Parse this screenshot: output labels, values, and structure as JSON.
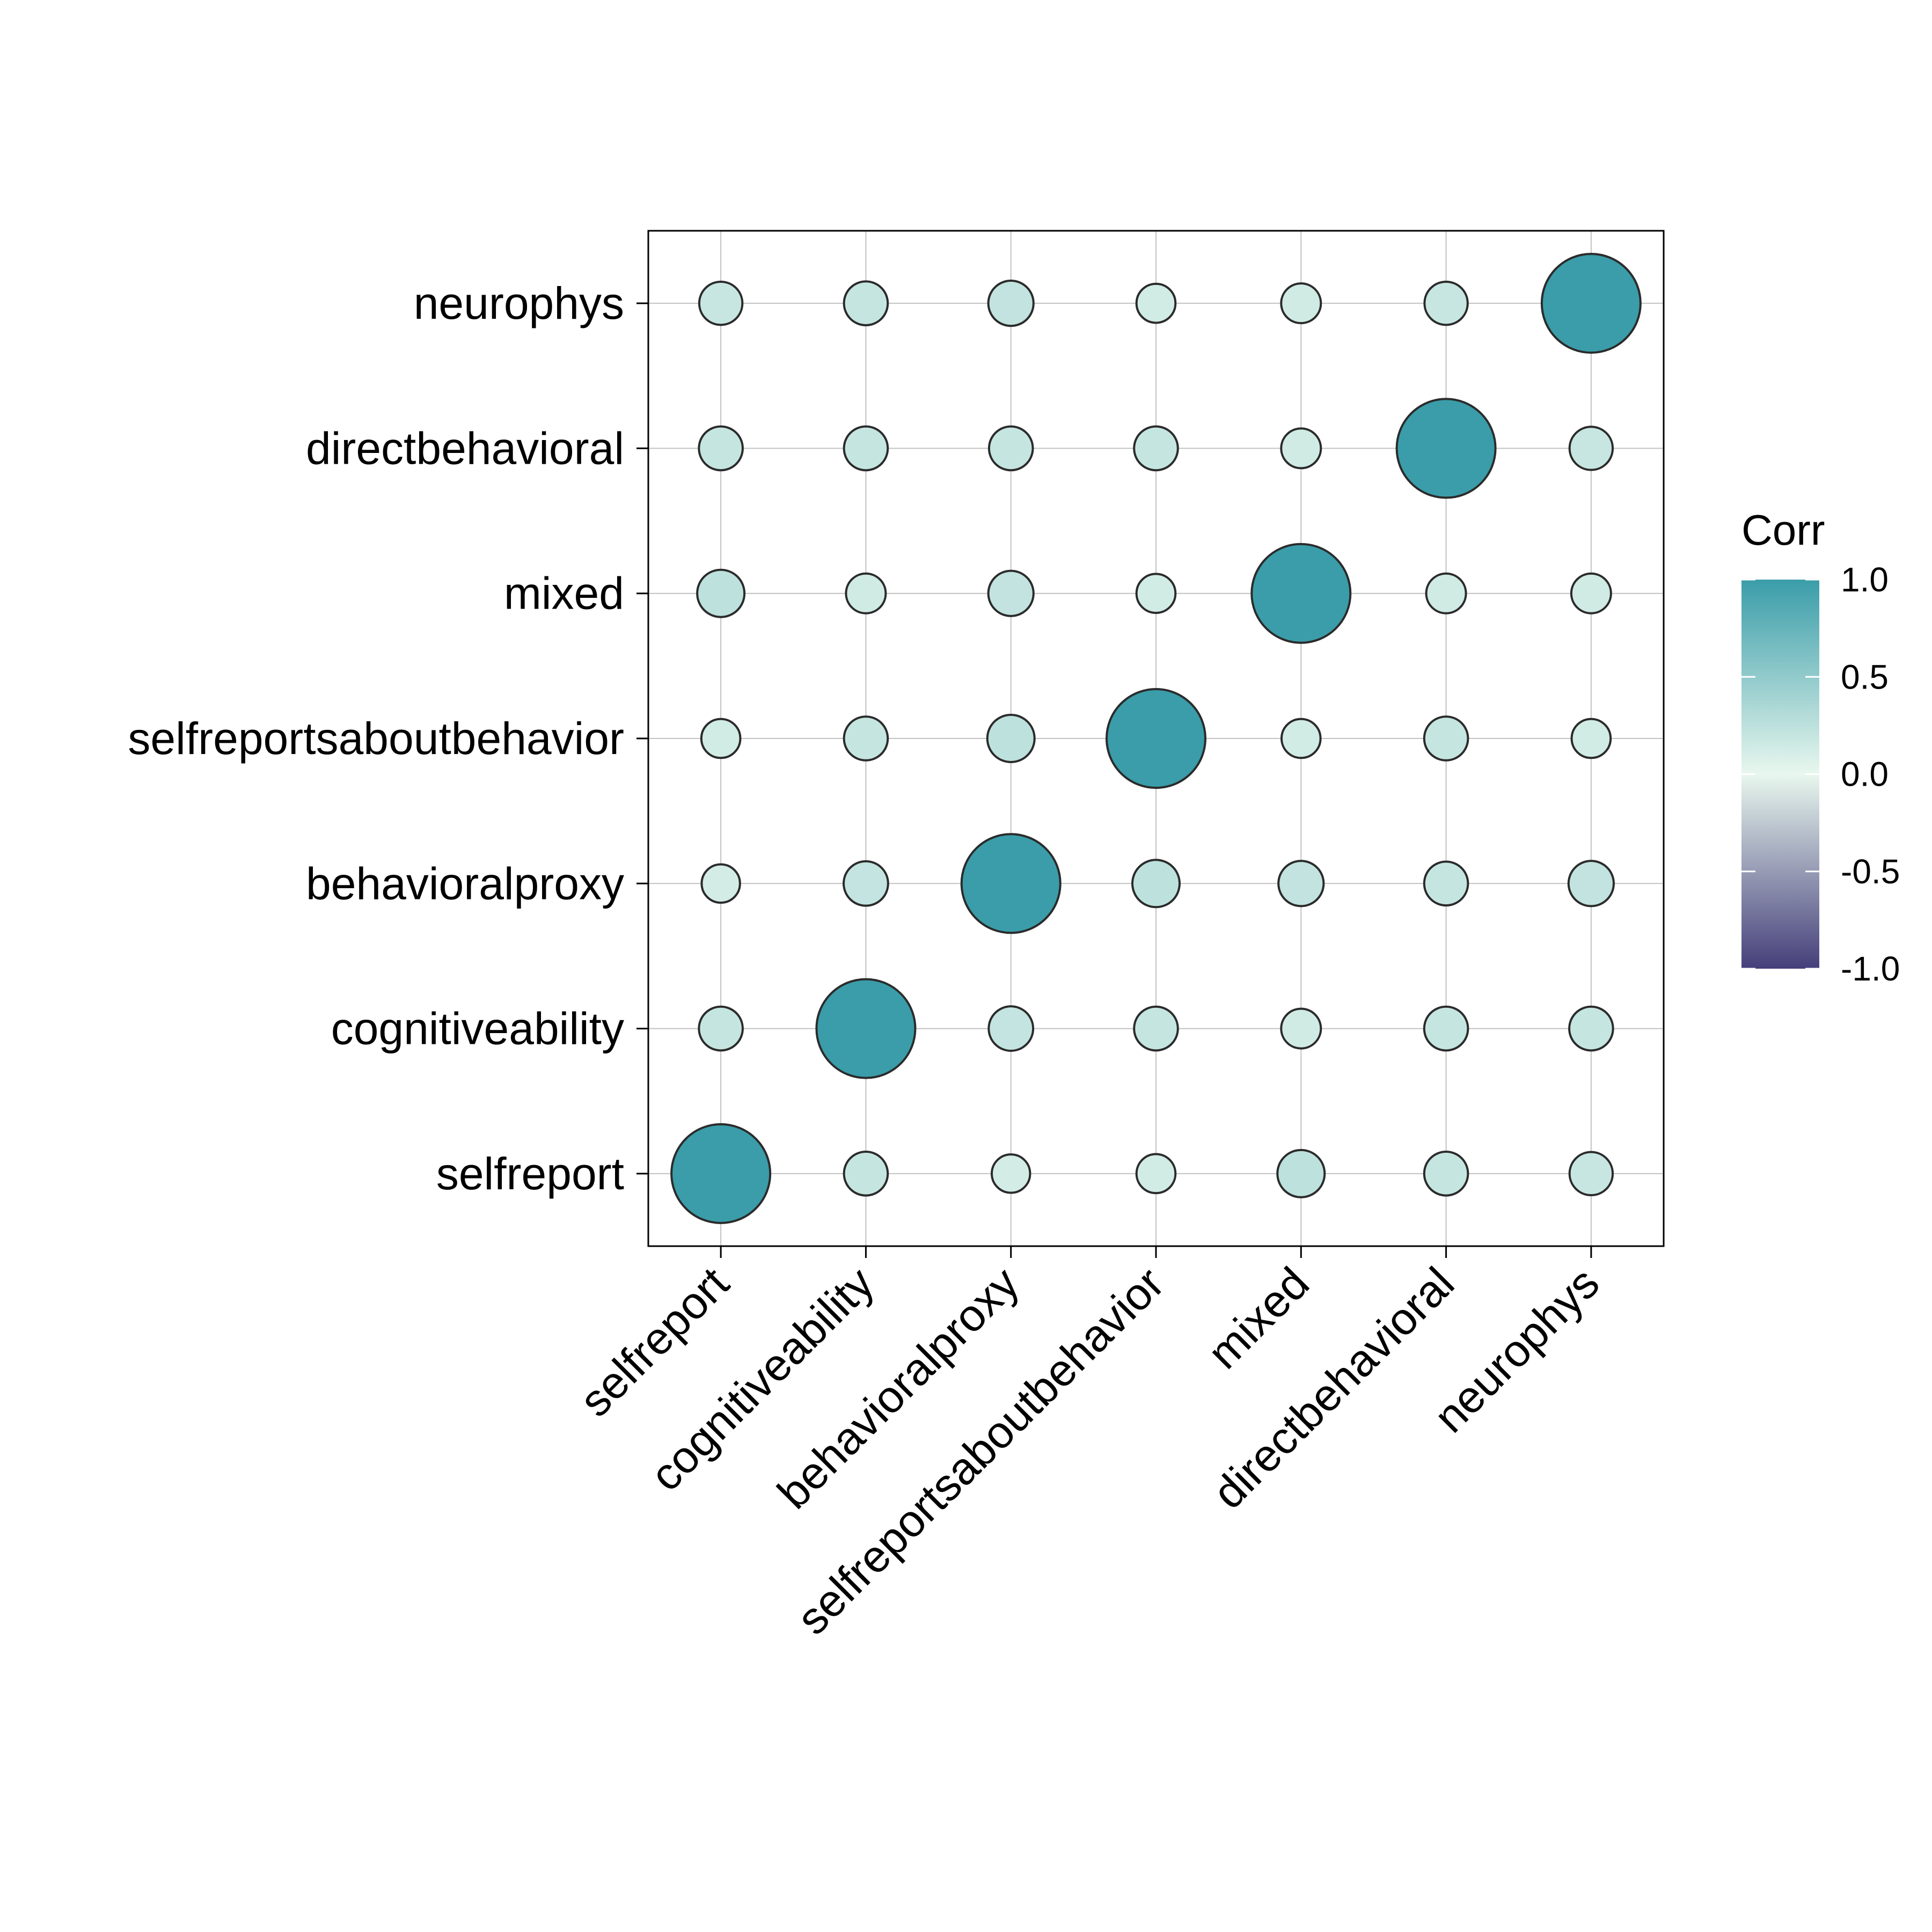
{
  "chart_data": {
    "type": "heatmap",
    "marker": "circle",
    "variables": [
      "selfreport",
      "cognitiveability",
      "behavioralproxy",
      "selfreportsaboutbehavior",
      "mixed",
      "directbehavioral",
      "neurophys"
    ],
    "x_categories": [
      "selfreport",
      "cognitiveability",
      "behavioralproxy",
      "selfreportsaboutbehavior",
      "mixed",
      "directbehavioral",
      "neurophys"
    ],
    "y_categories": [
      "selfreport",
      "cognitiveability",
      "behavioralproxy",
      "selfreportsaboutbehavior",
      "mixed",
      "directbehavioral",
      "neurophys"
    ],
    "y_order": "bottom-to-top",
    "matrix": [
      [
        1.0,
        0.2,
        0.12,
        0.13,
        0.25,
        0.2,
        0.19
      ],
      [
        0.2,
        1.0,
        0.21,
        0.2,
        0.14,
        0.2,
        0.2
      ],
      [
        0.12,
        0.21,
        1.0,
        0.25,
        0.22,
        0.2,
        0.22
      ],
      [
        0.13,
        0.2,
        0.25,
        1.0,
        0.13,
        0.2,
        0.13
      ],
      [
        0.25,
        0.14,
        0.22,
        0.13,
        1.0,
        0.14,
        0.14
      ],
      [
        0.2,
        0.2,
        0.2,
        0.2,
        0.14,
        1.0,
        0.19
      ],
      [
        0.19,
        0.2,
        0.22,
        0.13,
        0.14,
        0.19,
        1.0
      ]
    ],
    "value_range": [
      -1,
      1
    ],
    "grid": true,
    "legend": {
      "title": "Corr",
      "position": "right",
      "ticks": [
        "1.0",
        "0.5",
        "0.0",
        "-0.5",
        "-1.0"
      ],
      "tick_values": [
        1.0,
        0.5,
        0.0,
        -0.5,
        -1.0
      ]
    },
    "colors": {
      "low": "#453f7a",
      "mid": "#e8f7ee",
      "high": "#3a9da9",
      "marker_stroke": "#2b2b2b",
      "grid": "#c2c2c2",
      "frame": "#000000"
    }
  }
}
